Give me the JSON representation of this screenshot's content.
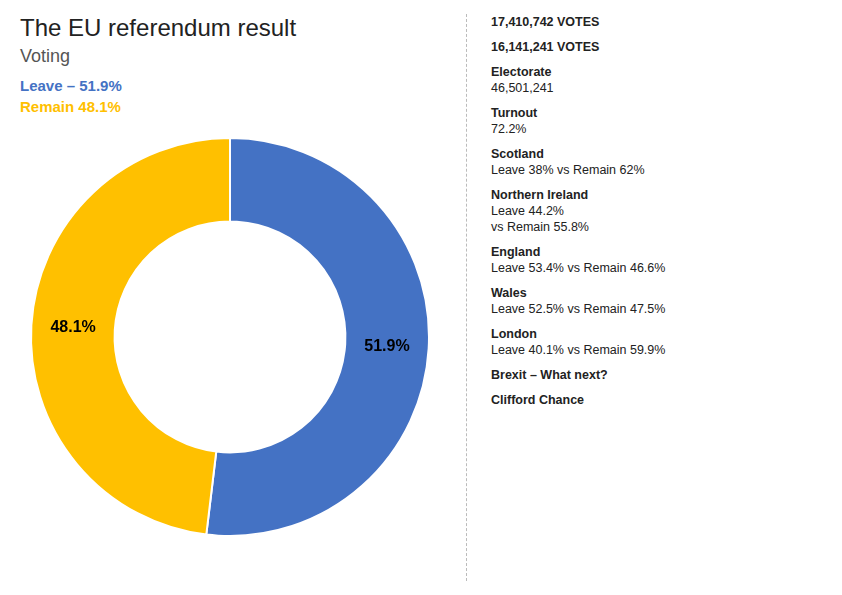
{
  "chart_data": {
    "type": "doughnut",
    "title": "The EU referendum result",
    "subtitle": "Voting",
    "categories": [
      "Leave – 51.9%",
      "Remain 48.1%"
    ],
    "values": [
      51.9,
      48.1
    ],
    "value_labels": [
      "51.9%",
      "48.1%"
    ],
    "data_labels": true,
    "colors": [
      "#4472C4",
      "#FFC000"
    ],
    "legend": false,
    "annotations": [
      [
        "17,410,742 VOTES"
      ],
      [
        "16,141,241 VOTES"
      ],
      [
        "Electorate",
        "46,501,241"
      ],
      [
        "Turnout",
        "72.2%"
      ],
      [
        "Scotland",
        "Leave 38% vs Remain 62%"
      ],
      [
        "Northern Ireland",
        "Leave 44.2%",
        "vs Remain 55.8%"
      ],
      [
        "England",
        "Leave 53.4% vs Remain 46.6%"
      ],
      [
        "Wales",
        "Leave 52.5% vs Remain 47.5%"
      ],
      [
        "London",
        "Leave 40.1% vs Remain 59.9%"
      ],
      [
        "Brexit – What next?"
      ],
      [
        "Clifford Chance"
      ]
    ]
  }
}
